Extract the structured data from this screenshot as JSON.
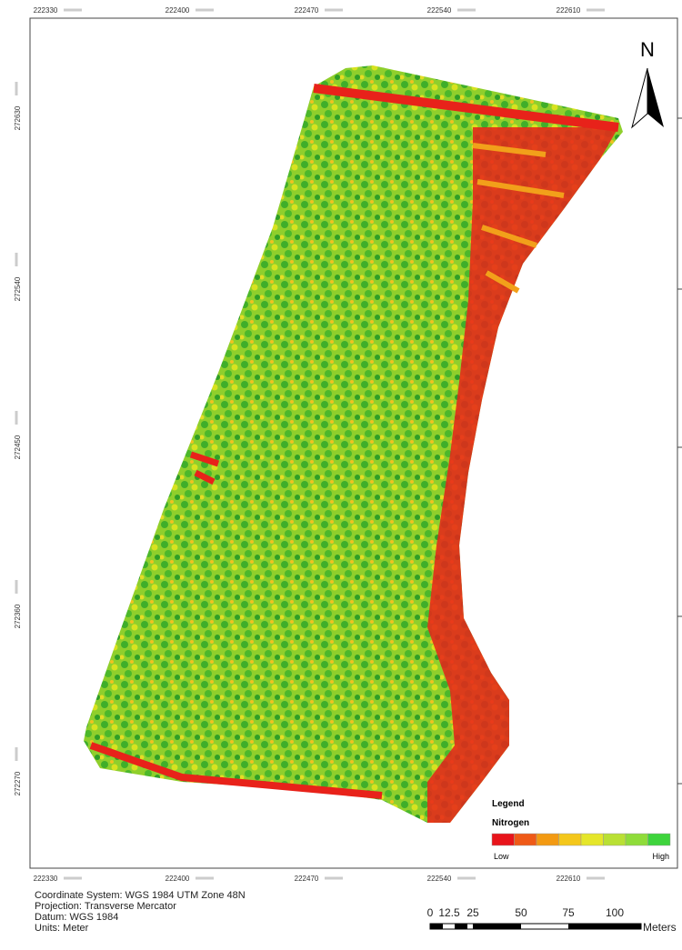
{
  "map": {
    "north_label": "N",
    "x_labels": [
      "222330",
      "222400",
      "222470",
      "222540",
      "222610"
    ],
    "y_labels": [
      "272630",
      "272540",
      "272450",
      "272360",
      "272270"
    ]
  },
  "legend": {
    "title": "Legend",
    "layer": "Nitrogen",
    "low": "Low",
    "high": "High",
    "colors": [
      "#e8141b",
      "#ef5a17",
      "#f39a12",
      "#f4c71b",
      "#e5e62a",
      "#b9e034",
      "#8fdc3a",
      "#3ed43c"
    ]
  },
  "footer": {
    "lines": [
      "Coordinate System: WGS 1984 UTM Zone 48N",
      "Projection: Transverse Mercator",
      "Datum: WGS 1984",
      "Units: Meter"
    ]
  },
  "scale_bar": {
    "labels": [
      "0",
      "12.5",
      "25",
      "50",
      "75",
      "100"
    ],
    "unit": "Meters"
  }
}
